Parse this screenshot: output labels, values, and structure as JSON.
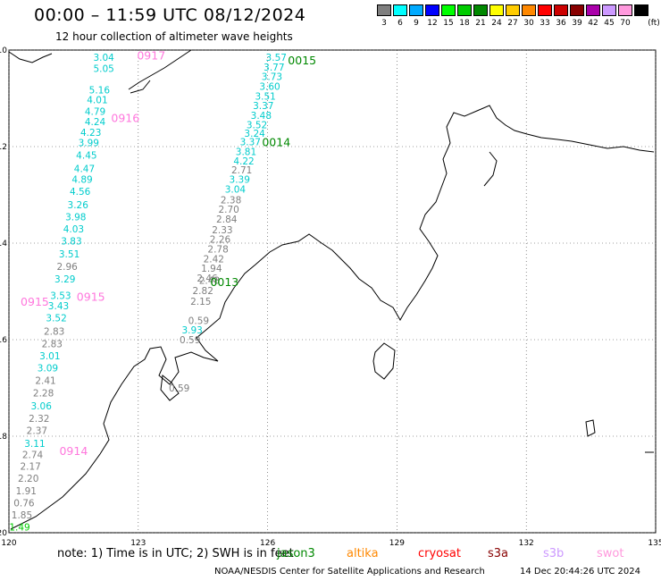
{
  "header": {
    "title": "00:00 – 11:59 UTC 08/12/2024",
    "subtitle": "12 hour collection of altimeter wave heights"
  },
  "legend": {
    "unit": "(ft)",
    "bins": [
      {
        "label": "3",
        "color": "#7f7f7f"
      },
      {
        "label": "6",
        "color": "#00ffff"
      },
      {
        "label": "9",
        "color": "#00aaff"
      },
      {
        "label": "12",
        "color": "#0000ff"
      },
      {
        "label": "15",
        "color": "#00ff00"
      },
      {
        "label": "18",
        "color": "#00cc00"
      },
      {
        "label": "21",
        "color": "#008800"
      },
      {
        "label": "24",
        "color": "#ffff00"
      },
      {
        "label": "27",
        "color": "#ffcc00"
      },
      {
        "label": "30",
        "color": "#ff8800"
      },
      {
        "label": "33",
        "color": "#ff0000"
      },
      {
        "label": "36",
        "color": "#cc0000"
      },
      {
        "label": "39",
        "color": "#880000"
      },
      {
        "label": "42",
        "color": "#aa00aa"
      },
      {
        "label": "45",
        "color": "#cc99ff"
      },
      {
        "label": "70",
        "color": "#ff99dd"
      },
      {
        "label": "",
        "color": "#000000"
      }
    ]
  },
  "map_axes": {
    "lon_ticks": [
      "120",
      "123",
      "126",
      "129",
      "132",
      "135"
    ],
    "lat_ticks": [
      "-10",
      "-12",
      "-14",
      "-16",
      "-18",
      "-20"
    ],
    "lon_range": [
      120,
      135
    ],
    "lat_range": [
      -20,
      -10
    ]
  },
  "time_labels": [
    {
      "text": "0915",
      "lon": 120.6,
      "lat": -15.2,
      "color": "#ff77dd"
    },
    {
      "text": "0916",
      "lon": 122.7,
      "lat": -11.4,
      "color": "#ff77dd"
    },
    {
      "text": "0917",
      "lon": 123.3,
      "lat": -10.1,
      "color": "#ff77dd"
    },
    {
      "text": "0915",
      "lon": 121.9,
      "lat": -15.1,
      "color": "#ff77dd"
    },
    {
      "text": "0914",
      "lon": 121.5,
      "lat": -18.3,
      "color": "#ff77dd"
    },
    {
      "text": "0015",
      "lon": 126.8,
      "lat": -10.2,
      "color": "#008800"
    },
    {
      "text": "0014",
      "lon": 126.2,
      "lat": -11.9,
      "color": "#008800"
    },
    {
      "text": "0013",
      "lon": 125.0,
      "lat": -14.8,
      "color": "#008800"
    }
  ],
  "track_points": [
    {
      "v": "3.04",
      "lon": 122.2,
      "lat": -10.15,
      "c": "#00cccc"
    },
    {
      "v": "5.05",
      "lon": 122.2,
      "lat": -10.38,
      "c": "#00cccc"
    },
    {
      "v": "5.16",
      "lon": 122.1,
      "lat": -10.82,
      "c": "#00cccc"
    },
    {
      "v": "4.01",
      "lon": 122.05,
      "lat": -11.03,
      "c": "#00cccc"
    },
    {
      "v": "4.79",
      "lon": 122.0,
      "lat": -11.27,
      "c": "#00cccc"
    },
    {
      "v": "4.24",
      "lon": 122.0,
      "lat": -11.48,
      "c": "#00cccc"
    },
    {
      "v": "4.23",
      "lon": 121.9,
      "lat": -11.7,
      "c": "#00cccc"
    },
    {
      "v": "3.99",
      "lon": 121.85,
      "lat": -11.92,
      "c": "#00cccc"
    },
    {
      "v": "4.45",
      "lon": 121.8,
      "lat": -12.18,
      "c": "#00cccc"
    },
    {
      "v": "4.47",
      "lon": 121.75,
      "lat": -12.45,
      "c": "#00cccc"
    },
    {
      "v": "4.89",
      "lon": 121.7,
      "lat": -12.68,
      "c": "#00cccc"
    },
    {
      "v": "4.56",
      "lon": 121.65,
      "lat": -12.93,
      "c": "#00cccc"
    },
    {
      "v": "3.26",
      "lon": 121.6,
      "lat": -13.2,
      "c": "#00cccc"
    },
    {
      "v": "3.98",
      "lon": 121.55,
      "lat": -13.45,
      "c": "#00cccc"
    },
    {
      "v": "4.03",
      "lon": 121.5,
      "lat": -13.7,
      "c": "#00cccc"
    },
    {
      "v": "3.83",
      "lon": 121.45,
      "lat": -13.95,
      "c": "#00cccc"
    },
    {
      "v": "3.51",
      "lon": 121.4,
      "lat": -14.22,
      "c": "#00cccc"
    },
    {
      "v": "2.96",
      "lon": 121.35,
      "lat": -14.48,
      "c": "#7f7f7f"
    },
    {
      "v": "3.29",
      "lon": 121.3,
      "lat": -14.74,
      "c": "#00cccc"
    },
    {
      "v": "3.53",
      "lon": 121.2,
      "lat": -15.08,
      "c": "#00cccc"
    },
    {
      "v": "3.43",
      "lon": 121.15,
      "lat": -15.3,
      "c": "#00cccc"
    },
    {
      "v": "3.52",
      "lon": 121.1,
      "lat": -15.55,
      "c": "#00cccc"
    },
    {
      "v": "2.83",
      "lon": 121.05,
      "lat": -15.82,
      "c": "#7f7f7f"
    },
    {
      "v": "2.83",
      "lon": 121.0,
      "lat": -16.08,
      "c": "#7f7f7f"
    },
    {
      "v": "3.01",
      "lon": 120.95,
      "lat": -16.33,
      "c": "#00cccc"
    },
    {
      "v": "3.09",
      "lon": 120.9,
      "lat": -16.58,
      "c": "#00cccc"
    },
    {
      "v": "2.41",
      "lon": 120.85,
      "lat": -16.84,
      "c": "#7f7f7f"
    },
    {
      "v": "2.28",
      "lon": 120.8,
      "lat": -17.1,
      "c": "#7f7f7f"
    },
    {
      "v": "3.06",
      "lon": 120.75,
      "lat": -17.37,
      "c": "#00cccc"
    },
    {
      "v": "2.32",
      "lon": 120.7,
      "lat": -17.63,
      "c": "#7f7f7f"
    },
    {
      "v": "2.37",
      "lon": 120.65,
      "lat": -17.88,
      "c": "#7f7f7f"
    },
    {
      "v": "3.11",
      "lon": 120.6,
      "lat": -18.15,
      "c": "#00cccc"
    },
    {
      "v": "2.74",
      "lon": 120.55,
      "lat": -18.38,
      "c": "#7f7f7f"
    },
    {
      "v": "2.17",
      "lon": 120.5,
      "lat": -18.62,
      "c": "#7f7f7f"
    },
    {
      "v": "2.20",
      "lon": 120.45,
      "lat": -18.87,
      "c": "#7f7f7f"
    },
    {
      "v": "1.91",
      "lon": 120.4,
      "lat": -19.13,
      "c": "#7f7f7f"
    },
    {
      "v": "0.76",
      "lon": 120.35,
      "lat": -19.38,
      "c": "#7f7f7f"
    },
    {
      "v": "1.85",
      "lon": 120.3,
      "lat": -19.63,
      "c": "#7f7f7f"
    },
    {
      "v": "1.49",
      "lon": 120.25,
      "lat": -19.88,
      "c": "#00cc00"
    },
    {
      "v": "3.57",
      "lon": 126.2,
      "lat": -10.15,
      "c": "#00cccc"
    },
    {
      "v": "3.77",
      "lon": 126.15,
      "lat": -10.35,
      "c": "#00cccc"
    },
    {
      "v": "3.73",
      "lon": 126.1,
      "lat": -10.55,
      "c": "#00cccc"
    },
    {
      "v": "3.60",
      "lon": 126.05,
      "lat": -10.75,
      "c": "#00cccc"
    },
    {
      "v": "3.51",
      "lon": 125.95,
      "lat": -10.95,
      "c": "#00cccc"
    },
    {
      "v": "3.37",
      "lon": 125.9,
      "lat": -11.15,
      "c": "#00cccc"
    },
    {
      "v": "3.48",
      "lon": 125.85,
      "lat": -11.35,
      "c": "#00cccc"
    },
    {
      "v": "3.52",
      "lon": 125.75,
      "lat": -11.55,
      "c": "#00cccc"
    },
    {
      "v": "3.24",
      "lon": 125.7,
      "lat": -11.72,
      "c": "#00cccc"
    },
    {
      "v": "3.37",
      "lon": 125.6,
      "lat": -11.9,
      "c": "#00cccc"
    },
    {
      "v": "3.81",
      "lon": 125.5,
      "lat": -12.1,
      "c": "#00cccc"
    },
    {
      "v": "4.22",
      "lon": 125.45,
      "lat": -12.3,
      "c": "#00cccc"
    },
    {
      "v": "2.71",
      "lon": 125.4,
      "lat": -12.48,
      "c": "#7f7f7f"
    },
    {
      "v": "3.39",
      "lon": 125.35,
      "lat": -12.68,
      "c": "#00cccc"
    },
    {
      "v": "3.04",
      "lon": 125.25,
      "lat": -12.88,
      "c": "#00cccc"
    },
    {
      "v": "2.38",
      "lon": 125.15,
      "lat": -13.1,
      "c": "#7f7f7f"
    },
    {
      "v": "2.70",
      "lon": 125.1,
      "lat": -13.3,
      "c": "#7f7f7f"
    },
    {
      "v": "2.84",
      "lon": 125.05,
      "lat": -13.5,
      "c": "#7f7f7f"
    },
    {
      "v": "2.33",
      "lon": 124.95,
      "lat": -13.72,
      "c": "#7f7f7f"
    },
    {
      "v": "2.26",
      "lon": 124.9,
      "lat": -13.92,
      "c": "#7f7f7f"
    },
    {
      "v": "2.78",
      "lon": 124.85,
      "lat": -14.12,
      "c": "#7f7f7f"
    },
    {
      "v": "2.42",
      "lon": 124.75,
      "lat": -14.32,
      "c": "#7f7f7f"
    },
    {
      "v": "1.94",
      "lon": 124.7,
      "lat": -14.52,
      "c": "#7f7f7f"
    },
    {
      "v": "2.46",
      "lon": 124.6,
      "lat": -14.72,
      "c": "#7f7f7f"
    },
    {
      "v": "2.48",
      "lon": 124.65,
      "lat": -14.77,
      "c": "#7f7f7f"
    },
    {
      "v": "2.82",
      "lon": 124.5,
      "lat": -14.98,
      "c": "#7f7f7f"
    },
    {
      "v": "2.15",
      "lon": 124.45,
      "lat": -15.2,
      "c": "#7f7f7f"
    },
    {
      "v": "0.59",
      "lon": 124.4,
      "lat": -15.6,
      "c": "#7f7f7f"
    },
    {
      "v": "3.93",
      "lon": 124.25,
      "lat": -15.8,
      "c": "#00cccc"
    },
    {
      "v": "0.59",
      "lon": 124.2,
      "lat": -16.0,
      "c": "#7f7f7f"
    },
    {
      "v": "0.59",
      "lon": 123.95,
      "lat": -17.0,
      "c": "#7f7f7f"
    }
  ],
  "footer": {
    "note": "note: 1) Time is in UTC; 2) SWH is in feet",
    "satellites": [
      {
        "name": "jason3",
        "color": "#008800"
      },
      {
        "name": "altika",
        "color": "#ff8800"
      },
      {
        "name": "cryosat",
        "color": "#ff0000"
      },
      {
        "name": "s3a",
        "color": "#880000"
      },
      {
        "name": "s3b",
        "color": "#cc99ff"
      },
      {
        "name": "swot",
        "color": "#ff99dd"
      }
    ],
    "credit": "NOAA/NESDIS Center for Satellite Applications and Research",
    "timestamp": "14 Dec 20:44:26 UTC 2024"
  }
}
